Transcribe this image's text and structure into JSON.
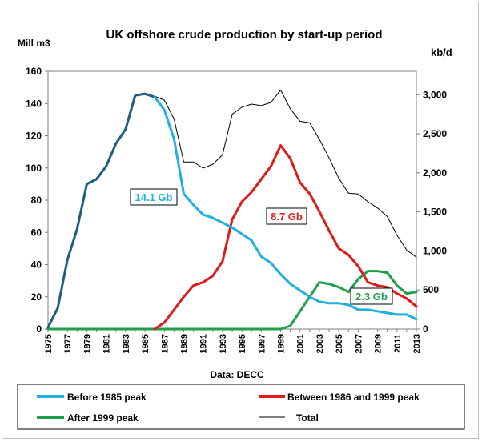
{
  "chart_data": {
    "type": "line",
    "title": "UK offshore crude production by start-up period",
    "ylabel_left": "Mill m3",
    "ylabel_right": "kb/d",
    "xlabel": "Data: DECC",
    "x": [
      1975,
      1976,
      1977,
      1978,
      1979,
      1980,
      1981,
      1982,
      1983,
      1984,
      1985,
      1986,
      1987,
      1988,
      1989,
      1990,
      1991,
      1992,
      1993,
      1994,
      1995,
      1996,
      1997,
      1998,
      1999,
      2000,
      2001,
      2002,
      2003,
      2004,
      2005,
      2006,
      2007,
      2008,
      2009,
      2010,
      2011,
      2012,
      2013
    ],
    "x_tick_labels": [
      "1975",
      "1977",
      "1979",
      "1981",
      "1983",
      "1985",
      "1987",
      "1989",
      "1991",
      "1993",
      "1995",
      "1997",
      "1999",
      "2001",
      "2003",
      "2005",
      "2007",
      "2009",
      "2011",
      "2013"
    ],
    "ylim_left": [
      0,
      160
    ],
    "yticks_left": [
      "0",
      "20",
      "40",
      "60",
      "80",
      "100",
      "120",
      "140",
      "160"
    ],
    "ylim_right": [
      0,
      3300
    ],
    "yticks_right": [
      "0",
      "500",
      "1,000",
      "1,500",
      "2,000",
      "2,500",
      "3,000"
    ],
    "yticks_right_values": [
      0,
      500,
      1000,
      1500,
      2000,
      2500,
      3000
    ],
    "series": [
      {
        "name": "Before 1985 peak",
        "color": "#1fb0e0",
        "axis": "left",
        "segments": [
          {
            "color": "#1b5e7e",
            "x": [
              1975,
              1976,
              1977,
              1978,
              1979,
              1980,
              1981,
              1982,
              1983,
              1984,
              1985,
              1986
            ],
            "values": [
              1,
              13,
              43,
              62,
              90,
              93,
              101,
              115,
              124,
              145,
              146,
              144
            ]
          },
          {
            "color": "#1fb0e0",
            "x": [
              1986,
              1987,
              1988,
              1989,
              1990,
              1991,
              1992,
              1993,
              1994,
              1995,
              1996,
              1997,
              1998,
              1999,
              2000,
              2001,
              2002,
              2003,
              2004,
              2005,
              2006,
              2007,
              2008,
              2009,
              2010,
              2011,
              2012,
              2013
            ],
            "values": [
              144,
              136,
              118,
              84,
              77,
              71,
              69,
              66,
              63,
              59,
              55,
              45,
              41,
              34,
              28,
              24,
              20,
              17,
              16,
              16,
              15,
              12,
              12,
              11,
              10,
              9,
              9,
              6
            ]
          }
        ],
        "label": "14.1 Gb"
      },
      {
        "name": "Between 1986 and 1999 peak",
        "color": "#e01818",
        "axis": "left",
        "x": [
          1986,
          1987,
          1988,
          1989,
          1990,
          1991,
          1992,
          1993,
          1994,
          1995,
          1996,
          1997,
          1998,
          1999,
          2000,
          2001,
          2002,
          2003,
          2004,
          2005,
          2006,
          2007,
          2008,
          2009,
          2010,
          2011,
          2012,
          2013
        ],
        "values": [
          0,
          4,
          12,
          20,
          27,
          29,
          33,
          42,
          68,
          79,
          85,
          93,
          101,
          114,
          106,
          91,
          84,
          73,
          61,
          50,
          46,
          39,
          29,
          27,
          26,
          22,
          19,
          14
        ],
        "label": "8.7 Gb"
      },
      {
        "name": "After 1999 peak",
        "color": "#1ea04a",
        "axis": "left",
        "x": [
          1975,
          1976,
          1977,
          1978,
          1979,
          1980,
          1981,
          1982,
          1983,
          1984,
          1985,
          1986,
          1987,
          1988,
          1989,
          1990,
          1991,
          1992,
          1993,
          1994,
          1995,
          1996,
          1997,
          1998,
          1999,
          2000,
          2001,
          2002,
          2003,
          2004,
          2005,
          2006,
          2007,
          2008,
          2009,
          2010,
          2011,
          2012,
          2013
        ],
        "values": [
          0,
          0,
          0,
          0,
          0,
          0,
          0,
          0,
          0,
          0,
          0,
          0,
          0,
          0,
          0,
          0,
          0,
          0,
          0,
          0,
          0,
          0,
          0,
          0,
          0,
          2,
          11,
          20,
          29,
          28,
          26,
          23,
          31,
          36,
          36,
          35,
          27,
          22,
          23
        ],
        "label": "2.3 Gb"
      },
      {
        "name": "Total",
        "color": "#000000",
        "axis": "right",
        "x": [
          1985,
          1986,
          1987,
          1988,
          1989,
          1990,
          1991,
          1992,
          1993,
          1994,
          1995,
          1996,
          1997,
          1998,
          1999,
          2000,
          2001,
          2002,
          2003,
          2004,
          2005,
          2006,
          2007,
          2008,
          2009,
          2010,
          2011,
          2012,
          2013
        ],
        "values": [
          3000,
          2980,
          2930,
          2690,
          2140,
          2140,
          2060,
          2110,
          2230,
          2750,
          2840,
          2880,
          2860,
          2900,
          3060,
          2820,
          2660,
          2640,
          2430,
          2190,
          1930,
          1740,
          1730,
          1630,
          1550,
          1440,
          1200,
          1010,
          920
        ]
      }
    ],
    "legend": {
      "placement": "bottom",
      "entries": [
        {
          "label": "Before 1985 peak",
          "color": "#1fb0e0",
          "thick": true
        },
        {
          "label": "Between 1986 and 1999 peak",
          "color": "#e01818",
          "thick": true
        },
        {
          "label": "After 1999 peak",
          "color": "#1ea04a",
          "thick": true
        },
        {
          "label": "Total",
          "color": "#000000",
          "thick": false
        }
      ]
    }
  }
}
